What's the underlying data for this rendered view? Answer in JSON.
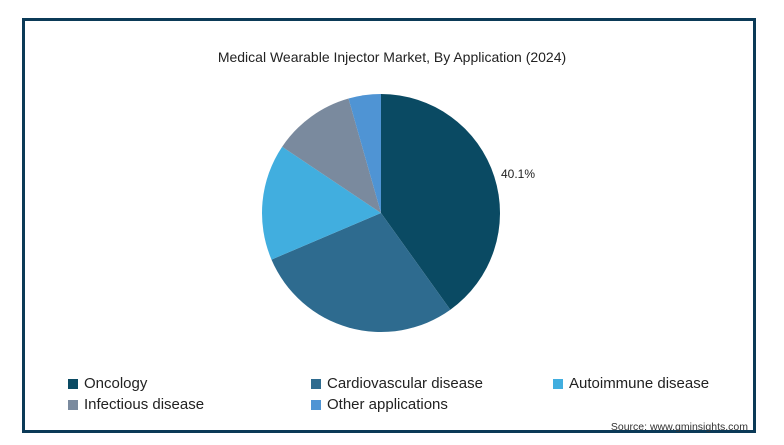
{
  "chart_data": {
    "type": "pie",
    "title": "Medical Wearable Injector Market, By Application (2024)",
    "slices": [
      {
        "name": "Oncology",
        "value": 40.1,
        "color": "#0a4a63",
        "label": "40.1%"
      },
      {
        "name": "Cardiovascular disease",
        "value": 28.5,
        "color": "#2e6b8f",
        "label": ""
      },
      {
        "name": "Autoimmune disease",
        "value": 15.8,
        "color": "#41aedf",
        "label": ""
      },
      {
        "name": "Infectious disease",
        "value": 11.2,
        "color": "#7a8a9e",
        "label": ""
      },
      {
        "name": "Other applications",
        "value": 4.4,
        "color": "#4f94d4",
        "label": ""
      }
    ],
    "legend_position": "bottom"
  },
  "source": "Source: www.gminsights.com"
}
